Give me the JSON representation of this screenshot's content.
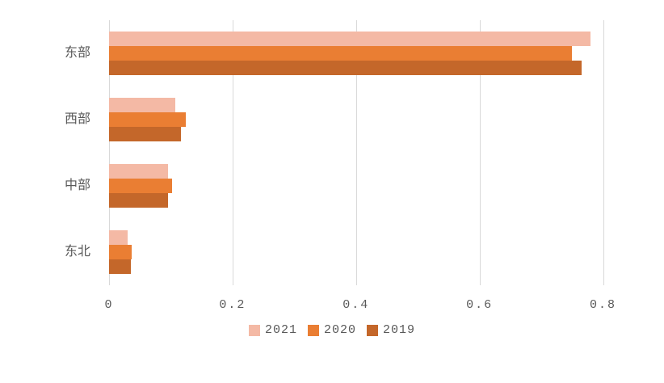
{
  "chart_data": {
    "type": "bar",
    "orientation": "horizontal",
    "title": "",
    "xlabel": "",
    "ylabel": "",
    "categories": [
      "东部",
      "西部",
      "中部",
      "东北"
    ],
    "series": [
      {
        "name": "2021",
        "color": "#F4B9A5",
        "values": [
          0.78,
          0.107,
          0.095,
          0.03
        ]
      },
      {
        "name": "2020",
        "color": "#EA7E33",
        "values": [
          0.75,
          0.124,
          0.102,
          0.036
        ]
      },
      {
        "name": "2019",
        "color": "#C4672A",
        "values": [
          0.765,
          0.117,
          0.095,
          0.035
        ]
      }
    ],
    "xlim": [
      0,
      0.9
    ],
    "xticks": [
      {
        "value": 0,
        "label": "0"
      },
      {
        "value": 0.2,
        "label": "0.2"
      },
      {
        "value": 0.4,
        "label": "0.4"
      },
      {
        "value": 0.6,
        "label": "0.6"
      },
      {
        "value": 0.8,
        "label": "0.8"
      }
    ],
    "grid": "vertical-major",
    "legend_position": "bottom",
    "colors": {
      "text": "#595959",
      "gridline": "#D9D9D9",
      "background": "#FFFFFF"
    }
  }
}
